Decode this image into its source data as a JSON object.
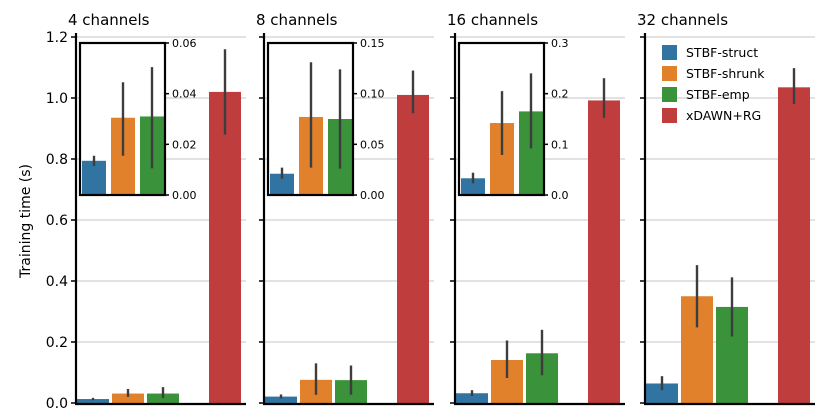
{
  "chart_data": {
    "type": "bar",
    "ylabel": "Training time (s)",
    "ylim": [
      0,
      1.2
    ],
    "yticks": [
      0.0,
      0.2,
      0.4,
      0.6,
      0.8,
      1.0,
      1.2
    ],
    "ytick_labels": [
      "0.0",
      "0.2",
      "0.4",
      "0.6",
      "0.8",
      "1.0",
      "1.2"
    ],
    "grid": true,
    "legend_position": "top-right of last panel",
    "series": [
      {
        "name": "STBF-struct",
        "color": "#3274a1"
      },
      {
        "name": "STBF-shrunk",
        "color": "#e1812c"
      },
      {
        "name": "STBF-emp",
        "color": "#3a923a"
      },
      {
        "name": "xDAWN+RG",
        "color": "#c03d3e"
      }
    ],
    "panels": [
      {
        "title": "4 channels",
        "values": [
          0.013,
          0.031,
          0.031,
          1.02
        ],
        "err_low": [
          0.009,
          0.02,
          0.016,
          0.88
        ],
        "err_high": [
          0.017,
          0.046,
          0.052,
          1.16
        ],
        "inset": {
          "ylim": [
            0,
            0.06
          ],
          "yticks": [
            0.0,
            0.02,
            0.04,
            0.06
          ],
          "ytick_labels": [
            "0.00",
            "0.02",
            "0.04",
            "0.06"
          ],
          "values": [
            0.0135,
            0.0305,
            0.031
          ],
          "err_low": [
            0.0115,
            0.0155,
            0.0105
          ],
          "err_high": [
            0.0155,
            0.0445,
            0.0505
          ]
        }
      },
      {
        "title": "8 channels",
        "values": [
          0.021,
          0.076,
          0.075,
          1.01
        ],
        "err_low": [
          0.015,
          0.027,
          0.027,
          0.95
        ],
        "err_high": [
          0.028,
          0.13,
          0.123,
          1.09
        ],
        "inset": {
          "ylim": [
            0,
            0.15
          ],
          "yticks": [
            0.0,
            0.05,
            0.1,
            0.15
          ],
          "ytick_labels": [
            "0.00",
            "0.05",
            "0.10",
            "0.15"
          ],
          "values": [
            0.021,
            0.077,
            0.075
          ],
          "err_low": [
            0.016,
            0.027,
            0.026
          ],
          "err_high": [
            0.027,
            0.131,
            0.124
          ]
        }
      },
      {
        "title": "16 channels",
        "values": [
          0.032,
          0.141,
          0.163,
          0.992
        ],
        "err_low": [
          0.023,
          0.082,
          0.091,
          0.935
        ],
        "err_high": [
          0.042,
          0.205,
          0.24,
          1.065
        ],
        "inset": {
          "ylim": [
            0,
            0.3
          ],
          "yticks": [
            0.0,
            0.1,
            0.2,
            0.3
          ],
          "ytick_labels": [
            "0.0",
            "0.1",
            "0.2",
            "0.3"
          ],
          "values": [
            0.033,
            0.142,
            0.165
          ],
          "err_low": [
            0.023,
            0.079,
            0.092
          ],
          "err_high": [
            0.044,
            0.205,
            0.24
          ]
        }
      },
      {
        "title": "32 channels",
        "values": [
          0.064,
          0.35,
          0.315,
          1.035
        ],
        "err_low": [
          0.042,
          0.248,
          0.218,
          0.98
        ],
        "err_high": [
          0.088,
          0.452,
          0.412,
          1.098
        ]
      }
    ]
  }
}
